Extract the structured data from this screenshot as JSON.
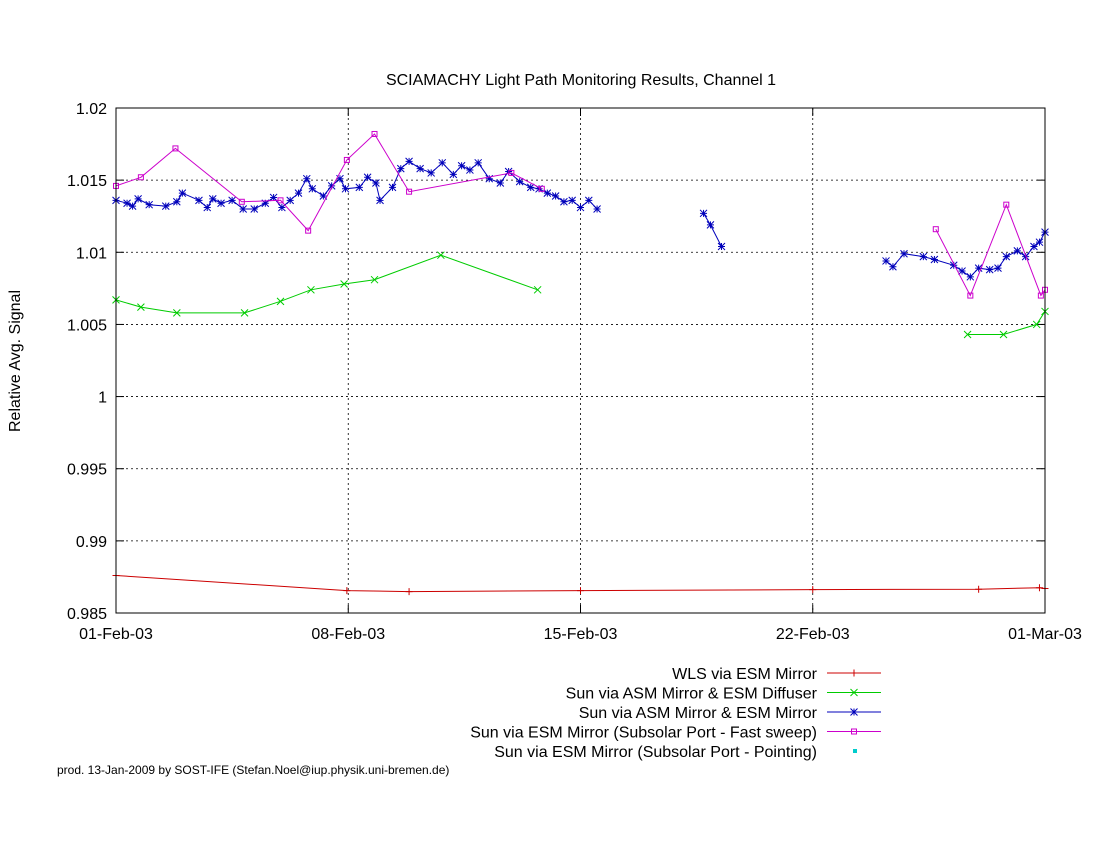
{
  "chart_data": {
    "type": "line",
    "title": "SCIAMACHY Light Path Monitoring Results, Channel 1",
    "xlabel": "",
    "ylabel": "Relative Avg. Signal",
    "x_unit": "date",
    "xlim": [
      "2003-02-01",
      "2003-03-01"
    ],
    "ylim": [
      0.985,
      1.02
    ],
    "x_ticks": [
      {
        "date": "2003-02-01",
        "label": "01-Feb-03"
      },
      {
        "date": "2003-02-08",
        "label": "08-Feb-03"
      },
      {
        "date": "2003-02-15",
        "label": "15-Feb-03"
      },
      {
        "date": "2003-02-22",
        "label": "22-Feb-03"
      },
      {
        "date": "2003-03-01",
        "label": "01-Mar-03"
      }
    ],
    "y_ticks": [
      {
        "value": 0.985,
        "label": "0.985"
      },
      {
        "value": 0.99,
        "label": "0.99"
      },
      {
        "value": 0.995,
        "label": "0.995"
      },
      {
        "value": 1.0,
        "label": "1"
      },
      {
        "value": 1.005,
        "label": "1.005"
      },
      {
        "value": 1.01,
        "label": "1.01"
      },
      {
        "value": 1.015,
        "label": "1.015"
      },
      {
        "value": 1.02,
        "label": "1.02"
      }
    ],
    "grid": true,
    "legend_position": "bottom-right",
    "series": [
      {
        "name": "WLS via ESM Mirror",
        "color": "#cc0000",
        "marker": "plus",
        "segments": [
          [
            {
              "x": "2003-02-01T00:00",
              "y": 0.9876
            },
            {
              "x": "2003-02-07T23:00",
              "y": 0.98655
            },
            {
              "x": "2003-02-09T20:00",
              "y": 0.98648
            },
            {
              "x": "2003-02-15T00:00",
              "y": 0.98655
            },
            {
              "x": "2003-02-22T00:00",
              "y": 0.98662
            },
            {
              "x": "2003-02-27T00:00",
              "y": 0.98665
            },
            {
              "x": "2003-02-28T20:00",
              "y": 0.98675
            },
            {
              "x": "2003-03-01T00:00",
              "y": 0.9867
            }
          ]
        ]
      },
      {
        "name": "Sun via ASM Mirror & ESM Diffuser",
        "color": "#00cc00",
        "marker": "cross",
        "segments": [
          [
            {
              "x": "2003-02-01T00:00",
              "y": 1.0067
            },
            {
              "x": "2003-02-01T18:00",
              "y": 1.0062
            },
            {
              "x": "2003-02-02T20:00",
              "y": 1.0058
            },
            {
              "x": "2003-02-04T21:00",
              "y": 1.0058
            },
            {
              "x": "2003-02-05T23:00",
              "y": 1.0066
            },
            {
              "x": "2003-02-06T21:00",
              "y": 1.0074
            },
            {
              "x": "2003-02-07T21:00",
              "y": 1.0078
            },
            {
              "x": "2003-02-08T19:00",
              "y": 1.0081
            },
            {
              "x": "2003-02-10T19:00",
              "y": 1.0098
            },
            {
              "x": "2003-02-13T17:00",
              "y": 1.0074
            }
          ],
          [
            {
              "x": "2003-02-26T16:00",
              "y": 1.0043
            },
            {
              "x": "2003-02-27T18:00",
              "y": 1.0043
            },
            {
              "x": "2003-02-28T18:00",
              "y": 1.005
            },
            {
              "x": "2003-03-01T00:00",
              "y": 1.0059
            }
          ]
        ]
      },
      {
        "name": "Sun via ASM Mirror & ESM Mirror",
        "color": "#0000bb",
        "marker": "star",
        "segments": [
          [
            {
              "x": "2003-02-01T00:00",
              "y": 1.0136
            },
            {
              "x": "2003-02-01T08:00",
              "y": 1.0134
            },
            {
              "x": "2003-02-01T12:00",
              "y": 1.0132
            },
            {
              "x": "2003-02-01T16:00",
              "y": 1.0137
            },
            {
              "x": "2003-02-02T00:00",
              "y": 1.0133
            },
            {
              "x": "2003-02-02T12:00",
              "y": 1.0132
            },
            {
              "x": "2003-02-02T20:00",
              "y": 1.0135
            },
            {
              "x": "2003-02-03T00:00",
              "y": 1.0141
            },
            {
              "x": "2003-02-03T12:00",
              "y": 1.0136
            },
            {
              "x": "2003-02-03T18:00",
              "y": 1.0131
            },
            {
              "x": "2003-02-03T22:00",
              "y": 1.0137
            },
            {
              "x": "2003-02-04T04:00",
              "y": 1.0134
            },
            {
              "x": "2003-02-04T12:00",
              "y": 1.0136
            },
            {
              "x": "2003-02-04T20:00",
              "y": 1.013
            },
            {
              "x": "2003-02-05T04:00",
              "y": 1.013
            },
            {
              "x": "2003-02-05T12:00",
              "y": 1.0134
            },
            {
              "x": "2003-02-05T18:00",
              "y": 1.0138
            },
            {
              "x": "2003-02-06T00:00",
              "y": 1.0131
            },
            {
              "x": "2003-02-06T06:00",
              "y": 1.0136
            },
            {
              "x": "2003-02-06T12:00",
              "y": 1.0141
            },
            {
              "x": "2003-02-06T18:00",
              "y": 1.0151
            },
            {
              "x": "2003-02-06T22:00",
              "y": 1.0144
            },
            {
              "x": "2003-02-07T06:00",
              "y": 1.0139
            },
            {
              "x": "2003-02-07T12:00",
              "y": 1.0146
            },
            {
              "x": "2003-02-07T18:00",
              "y": 1.0151
            },
            {
              "x": "2003-02-07T22:00",
              "y": 1.0144
            },
            {
              "x": "2003-02-08T08:00",
              "y": 1.0145
            },
            {
              "x": "2003-02-08T14:00",
              "y": 1.0152
            },
            {
              "x": "2003-02-08T20:00",
              "y": 1.0148
            },
            {
              "x": "2003-02-08T23:00",
              "y": 1.0136
            },
            {
              "x": "2003-02-09T08:00",
              "y": 1.0145
            },
            {
              "x": "2003-02-09T14:00",
              "y": 1.0158
            },
            {
              "x": "2003-02-09T20:00",
              "y": 1.0163
            },
            {
              "x": "2003-02-10T04:00",
              "y": 1.0158
            },
            {
              "x": "2003-02-10T12:00",
              "y": 1.0155
            },
            {
              "x": "2003-02-10T20:00",
              "y": 1.0162
            },
            {
              "x": "2003-02-11T04:00",
              "y": 1.0154
            },
            {
              "x": "2003-02-11T10:00",
              "y": 1.016
            },
            {
              "x": "2003-02-11T16:00",
              "y": 1.0157
            },
            {
              "x": "2003-02-11T22:00",
              "y": 1.0162
            },
            {
              "x": "2003-02-12T06:00",
              "y": 1.0151
            },
            {
              "x": "2003-02-12T14:00",
              "y": 1.0148
            },
            {
              "x": "2003-02-12T20:00",
              "y": 1.0156
            },
            {
              "x": "2003-02-13T04:00",
              "y": 1.0149
            },
            {
              "x": "2003-02-13T12:00",
              "y": 1.0145
            },
            {
              "x": "2003-02-13T18:00",
              "y": 1.0144
            },
            {
              "x": "2003-02-14T00:00",
              "y": 1.0141
            },
            {
              "x": "2003-02-14T06:00",
              "y": 1.0139
            },
            {
              "x": "2003-02-14T12:00",
              "y": 1.0135
            },
            {
              "x": "2003-02-14T18:00",
              "y": 1.0136
            },
            {
              "x": "2003-02-15T00:00",
              "y": 1.0131
            },
            {
              "x": "2003-02-15T06:00",
              "y": 1.0136
            },
            {
              "x": "2003-02-15T12:00",
              "y": 1.013
            }
          ],
          [
            {
              "x": "2003-02-18T17:00",
              "y": 1.0127
            },
            {
              "x": "2003-02-18T22:00",
              "y": 1.0119
            },
            {
              "x": "2003-02-19T06:00",
              "y": 1.0104
            }
          ],
          [
            {
              "x": "2003-02-24T05:00",
              "y": 1.0094
            },
            {
              "x": "2003-02-24T10:00",
              "y": 1.009
            },
            {
              "x": "2003-02-24T18:00",
              "y": 1.0099
            },
            {
              "x": "2003-02-25T08:00",
              "y": 1.0097
            },
            {
              "x": "2003-02-25T16:00",
              "y": 1.0095
            },
            {
              "x": "2003-02-26T06:00",
              "y": 1.0091
            },
            {
              "x": "2003-02-26T12:00",
              "y": 1.0087
            },
            {
              "x": "2003-02-26T18:00",
              "y": 1.0083
            },
            {
              "x": "2003-02-27T00:00",
              "y": 1.0089
            },
            {
              "x": "2003-02-27T08:00",
              "y": 1.0088
            },
            {
              "x": "2003-02-27T14:00",
              "y": 1.0089
            },
            {
              "x": "2003-02-27T20:00",
              "y": 1.0097
            },
            {
              "x": "2003-02-28T04:00",
              "y": 1.0101
            },
            {
              "x": "2003-02-28T10:00",
              "y": 1.0097
            },
            {
              "x": "2003-02-28T16:00",
              "y": 1.0104
            },
            {
              "x": "2003-02-28T20:00",
              "y": 1.0107
            },
            {
              "x": "2003-03-01T00:00",
              "y": 1.0114
            }
          ]
        ]
      },
      {
        "name": "Sun via ESM Mirror (Subsolar Port - Fast sweep)",
        "color": "#cc00cc",
        "marker": "square",
        "segments": [
          [
            {
              "x": "2003-02-01T00:00",
              "y": 1.0146
            },
            {
              "x": "2003-02-01T18:00",
              "y": 1.0152
            },
            {
              "x": "2003-02-02T19:00",
              "y": 1.0172
            },
            {
              "x": "2003-02-04T19:00",
              "y": 1.0135
            },
            {
              "x": "2003-02-05T23:00",
              "y": 1.0136
            },
            {
              "x": "2003-02-06T19:00",
              "y": 1.0115
            },
            {
              "x": "2003-02-07T23:00",
              "y": 1.0164
            },
            {
              "x": "2003-02-08T19:00",
              "y": 1.0182
            },
            {
              "x": "2003-02-09T20:00",
              "y": 1.0142
            },
            {
              "x": "2003-02-12T22:00",
              "y": 1.0155
            },
            {
              "x": "2003-02-13T20:00",
              "y": 1.0144
            }
          ],
          [
            {
              "x": "2003-02-25T17:00",
              "y": 1.0116
            },
            {
              "x": "2003-02-26T18:00",
              "y": 1.007
            },
            {
              "x": "2003-02-27T20:00",
              "y": 1.0133
            },
            {
              "x": "2003-02-28T21:00",
              "y": 1.007
            },
            {
              "x": "2003-03-01T00:00",
              "y": 1.0074
            }
          ]
        ]
      },
      {
        "name": "Sun via ESM Mirror (Subsolar Port - Pointing)",
        "color": "#00cccc",
        "marker": "dot",
        "segments": []
      }
    ]
  },
  "footer": {
    "credit": "prod. 13-Jan-2009 by SOST-IFE (Stefan.Noel@iup.physik.uni-bremen.de)"
  }
}
